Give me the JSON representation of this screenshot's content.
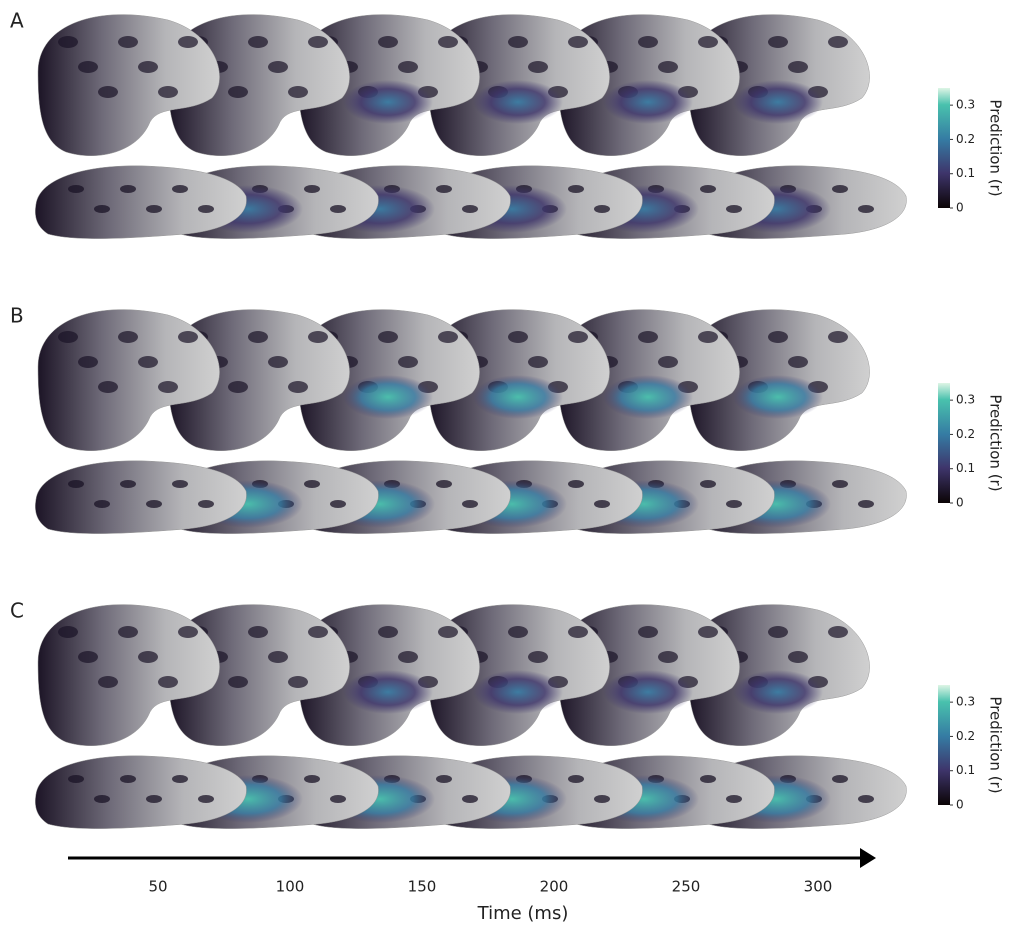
{
  "panels": [
    {
      "label": "A",
      "colorbar": {
        "label": "Prediction (r)",
        "lim": [
          0,
          0.35
        ],
        "ticks": [
          0,
          0.1,
          0.2,
          0.3
        ]
      }
    },
    {
      "label": "B",
      "colorbar": {
        "label": "Prediction (r)",
        "lim": [
          0,
          0.35
        ],
        "ticks": [
          0,
          0.1,
          0.2,
          0.3
        ]
      }
    },
    {
      "label": "C",
      "colorbar": {
        "label": "Prediction (r)",
        "lim": [
          0,
          0.35
        ],
        "ticks": [
          0,
          0.1,
          0.2,
          0.3
        ]
      }
    }
  ],
  "time_axis": {
    "label": "Time (ms)",
    "ticks": [
      50,
      100,
      150,
      200,
      250,
      300
    ]
  }
}
